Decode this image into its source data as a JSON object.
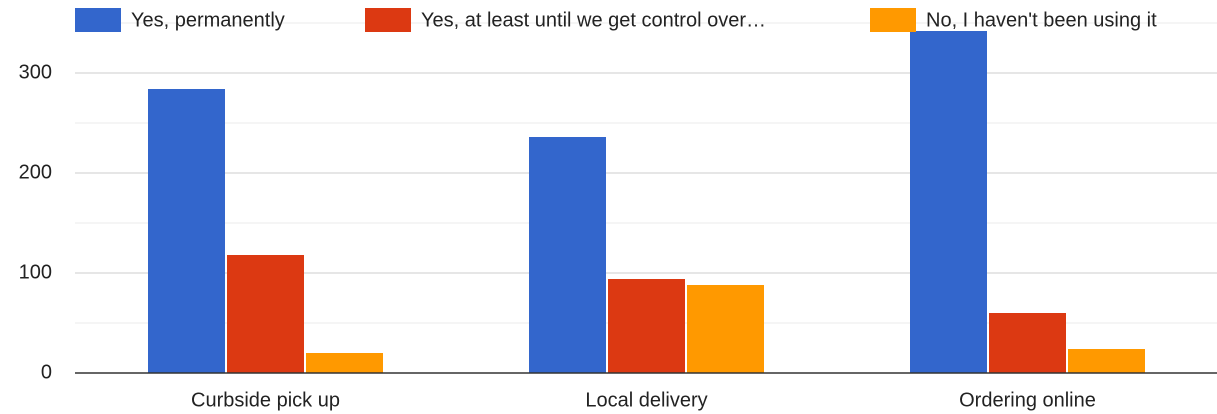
{
  "chart_data": {
    "type": "bar",
    "categories": [
      "Curbside pick up",
      "Local delivery",
      "Ordering online"
    ],
    "series": [
      {
        "name": "Yes, permanently",
        "color": "#3366cc",
        "values": [
          284,
          236,
          342
        ]
      },
      {
        "name": "Yes, at least until we get control over…",
        "color": "#dc3912",
        "values": [
          118,
          94,
          60
        ]
      },
      {
        "name": "No, I haven't been using it",
        "color": "#ff9900",
        "values": [
          20,
          88,
          24
        ]
      }
    ],
    "ylim": [
      0,
      350
    ],
    "yticks": [
      0,
      100,
      200,
      300
    ],
    "minor_yticks": [
      50,
      150,
      250,
      350
    ],
    "grid": true,
    "legend": "top"
  }
}
